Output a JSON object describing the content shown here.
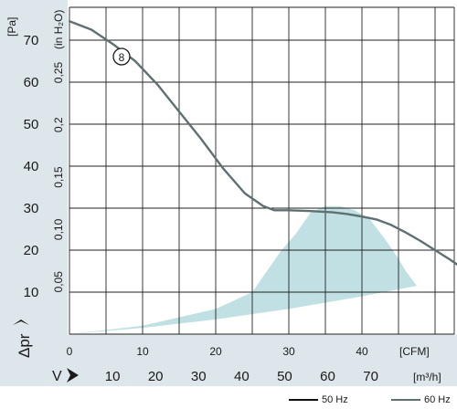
{
  "chart_data": {
    "type": "line",
    "ylabel_left": "Δpr",
    "ylabel_left_unit": "[Pa]",
    "ylabel_right_unit": "(in H₂O)",
    "xlabel": "V",
    "x_unit_top": "[CFM]",
    "x_unit_bottom": "[m³/h]",
    "xlim_cfm": [
      0,
      73.5
    ],
    "ylim_pa": [
      0,
      75
    ],
    "y_ticks_pa": [
      "10",
      "20",
      "30",
      "40",
      "50",
      "60",
      "70"
    ],
    "y_ticks_inh2o": [
      "0,05",
      "0,10",
      "0,15",
      "0,2",
      "0,25"
    ],
    "x_ticks_cfm": [
      "0",
      "10",
      "20",
      "30",
      "40"
    ],
    "x_ticks_m3h": [
      "10",
      "20",
      "30",
      "40",
      "50",
      "60",
      "70"
    ],
    "grid": true,
    "curve_marker": "8",
    "series": [
      {
        "name": "60 Hz",
        "color": "#5f7072",
        "x_cfm": [
          0,
          3,
          6,
          9,
          12,
          15,
          18,
          21,
          24,
          26.5,
          28,
          30,
          33,
          36,
          38,
          40,
          42,
          44,
          46,
          48,
          50,
          52,
          54,
          56,
          58,
          60,
          63,
          66,
          69,
          72,
          73.5
        ],
        "y_pa": [
          74.5,
          72.5,
          69,
          65,
          59.5,
          53,
          46.5,
          39.5,
          33.5,
          30.5,
          29.5,
          29.5,
          29.3,
          29,
          28.6,
          28,
          27.3,
          26,
          24.2,
          22.2,
          20,
          17.8,
          15.4,
          12.8,
          10.2,
          7.5,
          4.8,
          2.6,
          1,
          0.2,
          0
        ]
      },
      {
        "name": "50 Hz",
        "color": "#111111",
        "x_cfm": [],
        "y_pa": []
      }
    ],
    "shaded_region": {
      "color": "#b9dde0",
      "upper": {
        "x_cfm": [
          0,
          10,
          20,
          25,
          27,
          29,
          31,
          33,
          35,
          37,
          39,
          41,
          43,
          45,
          46,
          47.5
        ],
        "y_pa": [
          0,
          2,
          6,
          10,
          15,
          20,
          24,
          29,
          30.5,
          30.5,
          29.5,
          27.5,
          23,
          18,
          15,
          11.5
        ]
      },
      "lower": {
        "x_cfm": [
          47.5,
          40,
          30,
          20,
          10,
          0
        ],
        "y_pa": [
          11.5,
          9,
          6,
          3.5,
          1.5,
          0
        ]
      }
    }
  }
}
